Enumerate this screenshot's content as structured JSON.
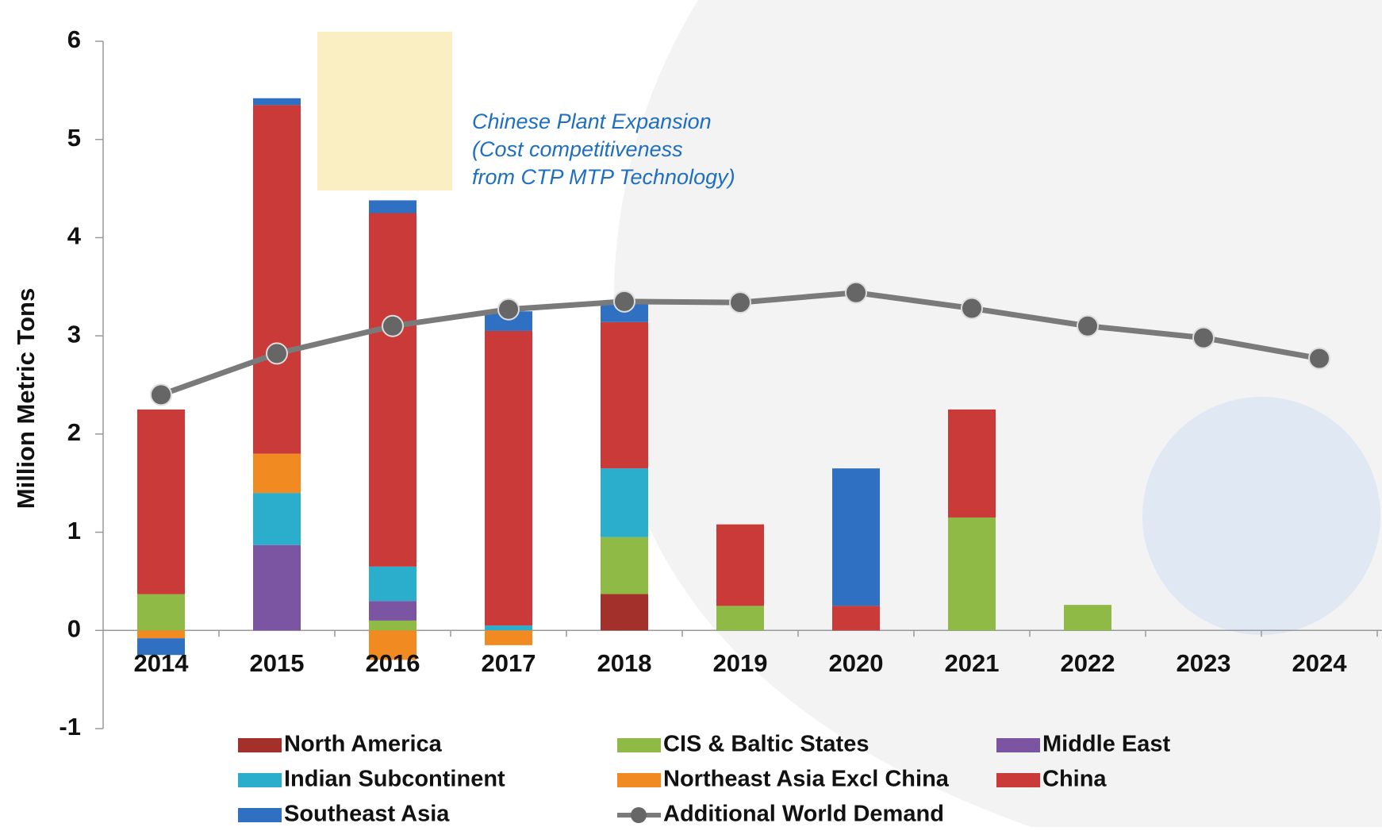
{
  "chart_data": {
    "type": "bar",
    "categories": [
      "2014",
      "2015",
      "2016",
      "2017",
      "2018",
      "2019",
      "2020",
      "2021",
      "2022",
      "2023",
      "2024"
    ],
    "y_axis_label": "Million Metric Tons",
    "ylim": [
      -1,
      6
    ],
    "yticks": [
      -1,
      0,
      1,
      2,
      3,
      4,
      5,
      6
    ],
    "annotation": [
      "Chinese Plant Expansion",
      "(Cost competitiveness",
      "from CTP MTP Technology)"
    ],
    "annotation_color": "#1f6fc0",
    "series": [
      {
        "name": "North America",
        "color": "#a3302b",
        "values": [
          0,
          0,
          0,
          0,
          0.37,
          0,
          0,
          0,
          0,
          0,
          0
        ]
      },
      {
        "name": "CIS & Baltic States",
        "color": "#8fba45",
        "values": [
          0.37,
          0,
          0.1,
          0,
          0.58,
          0.25,
          0,
          1.15,
          0.26,
          0,
          0
        ]
      },
      {
        "name": "Middle East",
        "color": "#7b55a2",
        "values": [
          0,
          0.87,
          0.2,
          0,
          0,
          0,
          0,
          0,
          0,
          0,
          0
        ]
      },
      {
        "name": "Indian Subcontinent",
        "color": "#2badcc",
        "values": [
          0,
          0.53,
          0.35,
          0.05,
          0.7,
          0,
          0,
          0,
          0,
          0,
          0
        ]
      },
      {
        "name": "Northeast Asia Excl China",
        "color": "#f28a22",
        "values": [
          -0.08,
          0.4,
          -0.3,
          -0.15,
          0,
          0,
          0,
          0,
          0,
          0,
          0
        ]
      },
      {
        "name": "China",
        "color": "#c93a38",
        "values": [
          1.88,
          3.55,
          3.6,
          3.0,
          1.49,
          0.83,
          0.25,
          1.1,
          0,
          0,
          0
        ]
      },
      {
        "name": "Southeast Asia",
        "color": "#2f70c2",
        "values": [
          -0.17,
          0.07,
          0.13,
          0.2,
          0.21,
          0,
          1.4,
          0,
          0,
          0,
          0
        ]
      }
    ],
    "line_series": {
      "name": "Additional World Demand",
      "color": "#7a7a7a",
      "values": [
        2.4,
        2.82,
        3.1,
        3.27,
        3.35,
        3.34,
        3.44,
        3.28,
        3.1,
        2.98,
        2.77
      ]
    }
  }
}
